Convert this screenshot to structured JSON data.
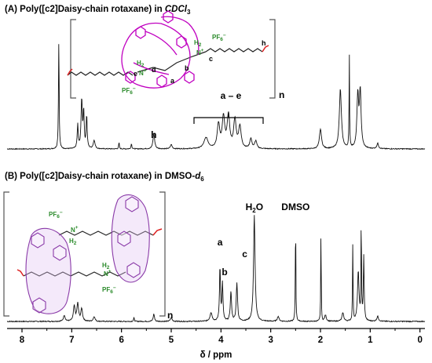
{
  "chart_data": [
    {
      "type": "line",
      "panel": "A",
      "title_parts": {
        "prefix": "(A) Poly([c2]Daisy-chain rotaxane) in ",
        "solvent": "CDCl",
        "sub": "3"
      },
      "structure_labels": {
        "c": "c",
        "d": "d",
        "e": "e",
        "a": "a",
        "b": "b",
        "h": "h",
        "n": "n",
        "pf6": "PF",
        "pf6_sub": "6",
        "pf6_sup": "−",
        "nh": "H",
        "nh_sub": "2",
        "n_atom": "N",
        "n_plus": "+"
      },
      "peak_labels": [
        {
          "text": "h",
          "ppm": 5.35
        },
        {
          "text": "a – e",
          "ppm": 3.8
        }
      ],
      "peaks": [
        {
          "ppm": 7.26,
          "height": 1.0,
          "width": 0.008
        },
        {
          "ppm": 6.88,
          "height": 0.22,
          "width": 0.012
        },
        {
          "ppm": 6.8,
          "height": 0.45,
          "width": 0.015
        },
        {
          "ppm": 6.76,
          "height": 0.33,
          "width": 0.012
        },
        {
          "ppm": 6.7,
          "height": 0.3,
          "width": 0.012
        },
        {
          "ppm": 6.55,
          "height": 0.08,
          "width": 0.02
        },
        {
          "ppm": 6.05,
          "height": 0.06,
          "width": 0.008
        },
        {
          "ppm": 5.8,
          "height": 0.05,
          "width": 0.01
        },
        {
          "ppm": 5.35,
          "height": 0.14,
          "width": 0.02
        },
        {
          "ppm": 5.0,
          "height": 0.04,
          "width": 0.02
        },
        {
          "ppm": 4.3,
          "height": 0.1,
          "width": 0.05
        },
        {
          "ppm": 4.05,
          "height": 0.22,
          "width": 0.03
        },
        {
          "ppm": 3.95,
          "height": 0.28,
          "width": 0.03
        },
        {
          "ppm": 3.85,
          "height": 0.3,
          "width": 0.03
        },
        {
          "ppm": 3.72,
          "height": 0.26,
          "width": 0.03
        },
        {
          "ppm": 3.62,
          "height": 0.2,
          "width": 0.03
        },
        {
          "ppm": 3.4,
          "height": 0.09,
          "width": 0.025
        },
        {
          "ppm": 3.3,
          "height": 0.07,
          "width": 0.025
        },
        {
          "ppm": 2.0,
          "height": 0.18,
          "width": 0.025
        },
        {
          "ppm": 1.6,
          "height": 0.55,
          "width": 0.025
        },
        {
          "ppm": 1.42,
          "height": 0.85,
          "width": 0.006
        },
        {
          "ppm": 1.25,
          "height": 0.48,
          "width": 0.02
        },
        {
          "ppm": 1.2,
          "height": 0.52,
          "width": 0.02
        },
        {
          "ppm": 0.85,
          "height": 0.05,
          "width": 0.02
        }
      ]
    },
    {
      "type": "line",
      "panel": "B",
      "title_parts": {
        "prefix": "(B) Poly([c2]Daisy-chain rotaxane) in DMSO-",
        "italic": "d",
        "sub": "6"
      },
      "structure_labels": {
        "pf6": "PF",
        "pf6_sub": "6",
        "pf6_sup": "−",
        "nh": "H",
        "nh_sub": "2",
        "n_atom": "N",
        "n_plus": "+",
        "n": "n"
      },
      "peak_labels": [
        {
          "text": "H",
          "sub": "2",
          "tail": "O",
          "ppm": 3.33
        },
        {
          "text": "DMSO",
          "ppm": 2.5
        },
        {
          "text": "a",
          "ppm": 4.02
        },
        {
          "text": "b",
          "ppm": 3.8
        },
        {
          "text": "c",
          "ppm": 3.68
        }
      ],
      "peaks": [
        {
          "ppm": 7.15,
          "height": 0.05,
          "width": 0.02
        },
        {
          "ppm": 6.95,
          "height": 0.12,
          "width": 0.02
        },
        {
          "ppm": 6.88,
          "height": 0.14,
          "width": 0.02
        },
        {
          "ppm": 6.8,
          "height": 0.1,
          "width": 0.02
        },
        {
          "ppm": 6.55,
          "height": 0.04,
          "width": 0.02
        },
        {
          "ppm": 5.75,
          "height": 0.03,
          "width": 0.01
        },
        {
          "ppm": 5.35,
          "height": 0.06,
          "width": 0.015
        },
        {
          "ppm": 5.0,
          "height": 0.03,
          "width": 0.02
        },
        {
          "ppm": 4.2,
          "height": 0.07,
          "width": 0.025
        },
        {
          "ppm": 4.02,
          "height": 0.44,
          "width": 0.012
        },
        {
          "ppm": 3.97,
          "height": 0.3,
          "width": 0.012
        },
        {
          "ppm": 3.8,
          "height": 0.24,
          "width": 0.015
        },
        {
          "ppm": 3.68,
          "height": 0.31,
          "width": 0.015
        },
        {
          "ppm": 3.33,
          "height": 0.86,
          "width": 0.018
        },
        {
          "ppm": 2.85,
          "height": 0.04,
          "width": 0.02
        },
        {
          "ppm": 2.5,
          "height": 0.86,
          "width": 0.006
        },
        {
          "ppm": 1.99,
          "height": 0.81,
          "width": 0.005
        },
        {
          "ppm": 1.9,
          "height": 0.05,
          "width": 0.02
        },
        {
          "ppm": 1.55,
          "height": 0.07,
          "width": 0.02
        },
        {
          "ppm": 1.35,
          "height": 0.62,
          "width": 0.006
        },
        {
          "ppm": 1.24,
          "height": 0.4,
          "width": 0.018
        },
        {
          "ppm": 1.18,
          "height": 0.84,
          "width": 0.006
        },
        {
          "ppm": 1.13,
          "height": 0.52,
          "width": 0.01
        },
        {
          "ppm": 0.85,
          "height": 0.04,
          "width": 0.02
        }
      ]
    }
  ],
  "x_axis": {
    "label": "δ / ppm",
    "xlim": [
      8.3,
      -0.1
    ],
    "reversed": true,
    "ticks": [
      8,
      7,
      6,
      5,
      4,
      3,
      2,
      1,
      0
    ]
  }
}
